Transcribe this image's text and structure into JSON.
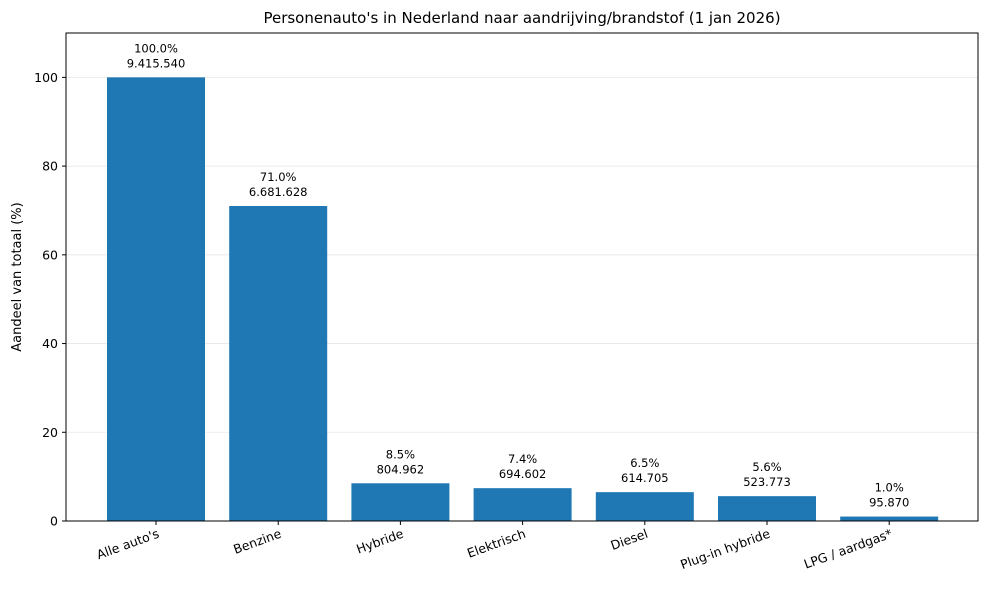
{
  "chart_data": {
    "type": "bar",
    "title": "Personenauto's in Nederland naar aandrijving/brandstof (1 jan 2026)",
    "xlabel": "",
    "ylabel": "Aandeel van totaal (%)",
    "ylim": [
      0,
      110
    ],
    "yticks": [
      "0",
      "20",
      "40",
      "60",
      "80",
      "100"
    ],
    "grid": "y",
    "bar_color": "#1f77b4",
    "categories": [
      "Alle auto's",
      "Benzine",
      "Hybride",
      "Elektrisch",
      "Diesel",
      "Plug-in hybride",
      "LPG / aardgas*"
    ],
    "values": [
      100.0,
      71.0,
      8.5,
      7.4,
      6.5,
      5.6,
      1.0
    ],
    "percent_labels": [
      "100.0%",
      "71.0%",
      "8.5%",
      "7.4%",
      "6.5%",
      "5.6%",
      "1.0%"
    ],
    "count_labels": [
      "9.415.540",
      "6.681.628",
      "804.962",
      "694.602",
      "614.705",
      "523.773",
      "95.870"
    ]
  }
}
